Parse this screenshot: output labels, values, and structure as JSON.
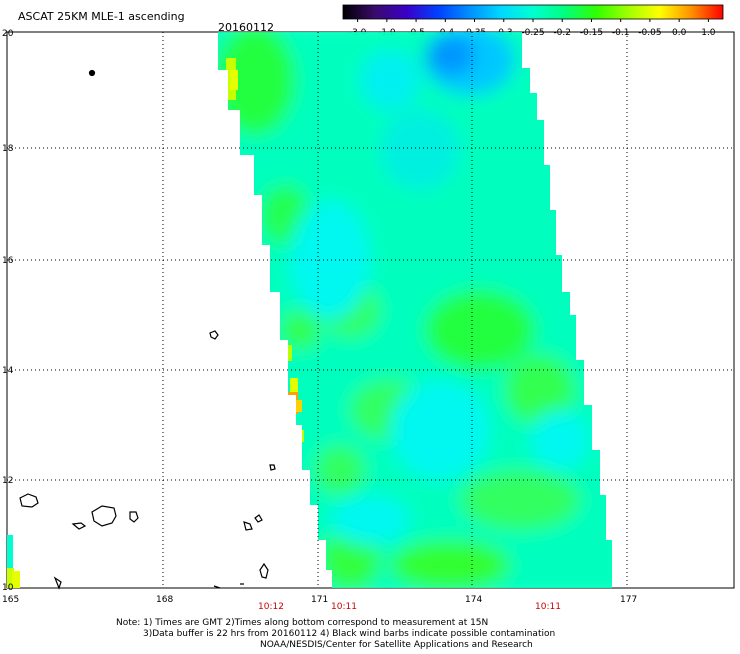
{
  "header": {
    "title": "ASCAT 25KM MLE-1 ascending",
    "date": "20160112"
  },
  "colorbar": {
    "labels": [
      "-3.0",
      "-1.0",
      "-0.5",
      "-0.4",
      "-0.35",
      "-0.3",
      "-0.25",
      "-0.2",
      "-0.15",
      "-0.1",
      "-0.05",
      "0.0",
      "1.0"
    ],
    "colors": [
      "#000000",
      "#3a0a6b",
      "#3b00c8",
      "#0040ff",
      "#0090ff",
      "#00d8ff",
      "#00ffd0",
      "#00ff80",
      "#30ff00",
      "#a0ff00",
      "#ffff00",
      "#ff9000",
      "#ff0000"
    ]
  },
  "map": {
    "lat_labels": [
      "20",
      "18",
      "16",
      "14",
      "12",
      "10"
    ],
    "lon_labels": [
      "165",
      "168",
      "171",
      "174",
      "177"
    ],
    "time_labels": [
      "10:12",
      "10:11",
      "10:11"
    ],
    "time_label_color": "#cc0000"
  },
  "footer": {
    "note_line1": "Note: 1) Times are GMT 2)Times along bottom correspond to measurement at 15N",
    "note_line2": "3)Data buffer is 22 hrs from 20160112 4) Black wind barbs indicate possible contamination",
    "credit": "NOAA/NESDIS/Center for Satellite Applications and Research"
  }
}
